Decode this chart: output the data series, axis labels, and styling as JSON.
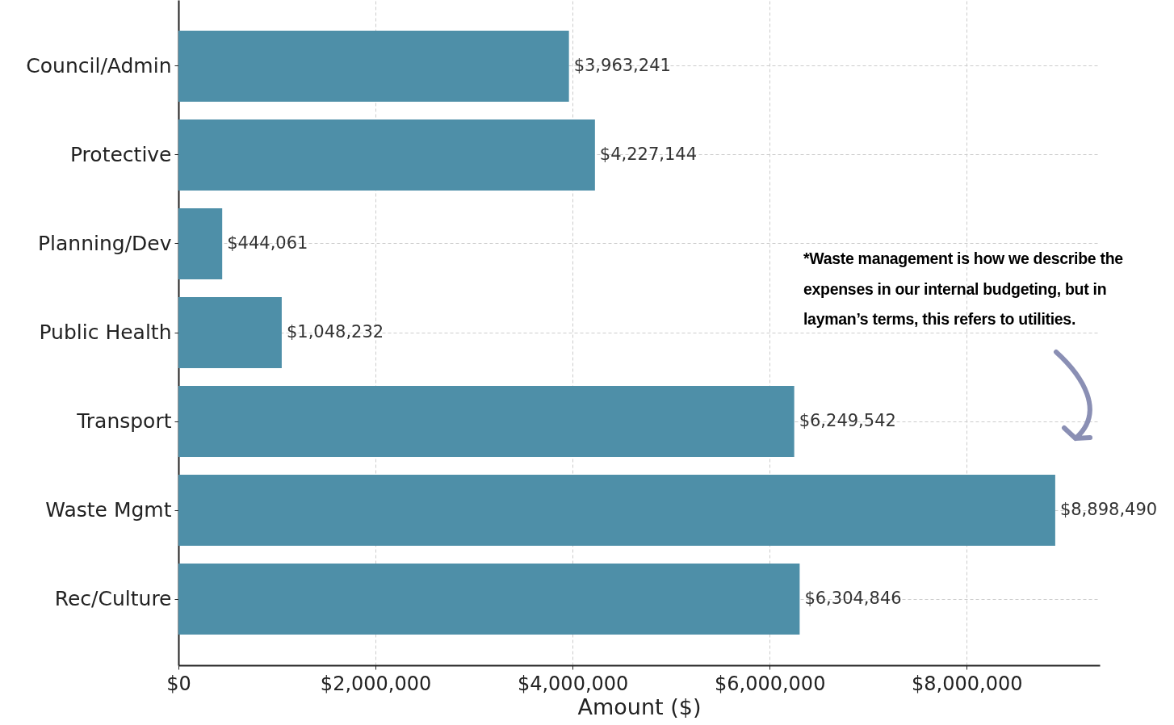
{
  "chart_data": {
    "type": "bar",
    "orientation": "horizontal",
    "categories": [
      "Council/Admin",
      "Protective",
      "Planning/Dev",
      "Public Health",
      "Transport",
      "Waste Mgmt",
      "Rec/Culture"
    ],
    "values": [
      3963241,
      4227144,
      444061,
      1048232,
      6249542,
      8898490,
      6304846
    ],
    "color": "#4e8fa8",
    "xlabel": "Amount ($)",
    "xlim": [
      0,
      9350000
    ],
    "xticks": [
      {
        "value": 0,
        "label": "$0"
      },
      {
        "value": 2000000,
        "label": "$2,000,000"
      },
      {
        "value": 4000000,
        "label": "$4,000,000"
      },
      {
        "value": 6000000,
        "label": "$6,000,000"
      },
      {
        "value": 8000000,
        "label": "$8,000,000"
      }
    ],
    "grid": true,
    "value_labels": [
      "$3,963,241",
      "$4,227,144",
      "$444,061",
      "$1,048,232",
      "$6,249,542",
      "$8,898,490",
      "$6,304,846"
    ],
    "annotations": [
      "*Waste management is how we describe the expenses in our internal budgeting, but in layman’s terms, this refers to utilities."
    ]
  }
}
